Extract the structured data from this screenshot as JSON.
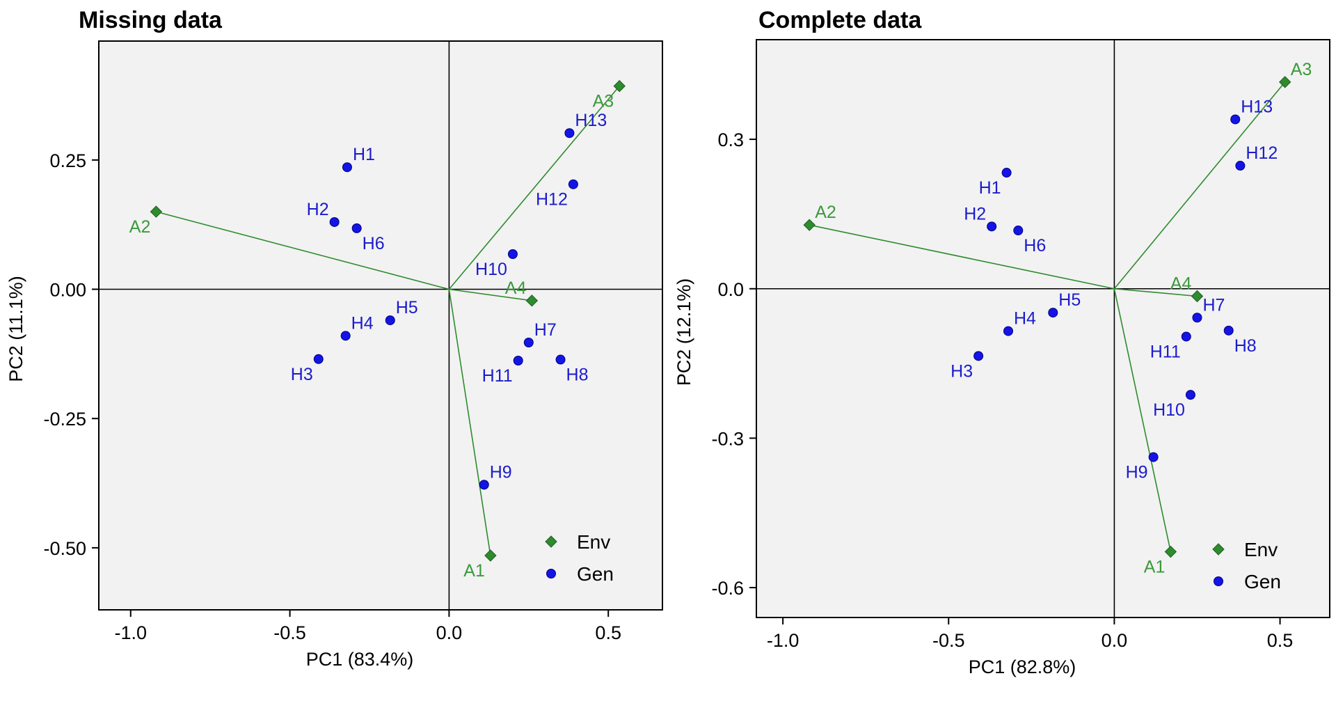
{
  "colors": {
    "env": "#2e8b2e",
    "env_text": "#3a9a3a",
    "gen": "#1414e6",
    "gen_text": "#1c1ccc",
    "panel_bg": "#f2f2f2"
  },
  "legend": {
    "env": "Env",
    "gen": "Gen"
  },
  "chart_data": [
    {
      "type": "scatter",
      "title": "Missing data",
      "xlabel": "PC1 (83.4%)",
      "ylabel": "PC2 (11.1%)",
      "xlim": [
        -1.1,
        0.67
      ],
      "ylim": [
        -0.62,
        0.48
      ],
      "xticks": [
        -1.0,
        -0.5,
        0.0,
        0.5
      ],
      "xtick_labels": [
        "-1.0",
        "-0.5",
        "0.0",
        "0.5"
      ],
      "yticks": [
        -0.5,
        -0.25,
        0.0,
        0.25
      ],
      "ytick_labels": [
        "-0.50",
        "-0.25",
        "0.00",
        "0.25"
      ],
      "legend_position": "bottom-right",
      "grid": false,
      "series": [
        {
          "name": "Env",
          "marker": "diamond",
          "points": [
            {
              "label": "A1",
              "x": 0.13,
              "y": -0.515,
              "label_pos": "bl"
            },
            {
              "label": "A2",
              "x": -0.92,
              "y": 0.15,
              "label_pos": "bl"
            },
            {
              "label": "A3",
              "x": 0.535,
              "y": 0.393,
              "label_pos": "bl"
            },
            {
              "label": "A4",
              "x": 0.26,
              "y": -0.022,
              "label_pos": "tl"
            }
          ]
        },
        {
          "name": "Gen",
          "marker": "circle",
          "points": [
            {
              "label": "H1",
              "x": -0.32,
              "y": 0.236,
              "label_pos": "tr"
            },
            {
              "label": "H2",
              "x": -0.36,
              "y": 0.13,
              "label_pos": "tl"
            },
            {
              "label": "H3",
              "x": -0.41,
              "y": -0.135,
              "label_pos": "bl"
            },
            {
              "label": "H4",
              "x": -0.325,
              "y": -0.09,
              "label_pos": "tr"
            },
            {
              "label": "H5",
              "x": -0.185,
              "y": -0.06,
              "label_pos": "tr"
            },
            {
              "label": "H6",
              "x": -0.29,
              "y": 0.118,
              "label_pos": "br"
            },
            {
              "label": "H7",
              "x": 0.25,
              "y": -0.103,
              "label_pos": "tr"
            },
            {
              "label": "H8",
              "x": 0.35,
              "y": -0.136,
              "label_pos": "br"
            },
            {
              "label": "H9",
              "x": 0.11,
              "y": -0.378,
              "label_pos": "tr"
            },
            {
              "label": "H10",
              "x": 0.2,
              "y": 0.068,
              "label_pos": "bl"
            },
            {
              "label": "H11",
              "x": 0.217,
              "y": -0.138,
              "label_pos": "bl"
            },
            {
              "label": "H12",
              "x": 0.39,
              "y": 0.203,
              "label_pos": "bl"
            },
            {
              "label": "H13",
              "x": 0.378,
              "y": 0.302,
              "label_pos": "tr"
            }
          ]
        }
      ],
      "vectors": [
        "A1",
        "A2",
        "A3",
        "A4"
      ]
    },
    {
      "type": "scatter",
      "title": "Complete data",
      "xlabel": "PC1 (82.8%)",
      "ylabel": "PC2 (12.1%)",
      "xlim": [
        -1.08,
        0.65
      ],
      "ylim": [
        -0.66,
        0.5
      ],
      "xticks": [
        -1.0,
        -0.5,
        0.0,
        0.5
      ],
      "xtick_labels": [
        "-1.0",
        "-0.5",
        "0.0",
        "0.5"
      ],
      "yticks": [
        -0.6,
        -0.3,
        0.0,
        0.3
      ],
      "ytick_labels": [
        "-0.6",
        "-0.3",
        "0.0",
        "0.3"
      ],
      "legend_position": "bottom-right",
      "grid": false,
      "series": [
        {
          "name": "Env",
          "marker": "diamond",
          "points": [
            {
              "label": "A1",
              "x": 0.17,
              "y": -0.528,
              "label_pos": "bl"
            },
            {
              "label": "A2",
              "x": -0.92,
              "y": 0.128,
              "label_pos": "tr"
            },
            {
              "label": "A3",
              "x": 0.515,
              "y": 0.415,
              "label_pos": "tr"
            },
            {
              "label": "A4",
              "x": 0.25,
              "y": -0.015,
              "label_pos": "tl"
            }
          ]
        },
        {
          "name": "Gen",
          "marker": "circle",
          "points": [
            {
              "label": "H1",
              "x": -0.325,
              "y": 0.233,
              "label_pos": "bl"
            },
            {
              "label": "H2",
              "x": -0.37,
              "y": 0.125,
              "label_pos": "tl"
            },
            {
              "label": "H3",
              "x": -0.41,
              "y": -0.135,
              "label_pos": "bl"
            },
            {
              "label": "H4",
              "x": -0.32,
              "y": -0.085,
              "label_pos": "tr"
            },
            {
              "label": "H5",
              "x": -0.185,
              "y": -0.048,
              "label_pos": "tr"
            },
            {
              "label": "H6",
              "x": -0.29,
              "y": 0.117,
              "label_pos": "br"
            },
            {
              "label": "H7",
              "x": 0.25,
              "y": -0.058,
              "label_pos": "tr"
            },
            {
              "label": "H8",
              "x": 0.345,
              "y": -0.084,
              "label_pos": "br"
            },
            {
              "label": "H9",
              "x": 0.118,
              "y": -0.338,
              "label_pos": "bl"
            },
            {
              "label": "H10",
              "x": 0.23,
              "y": -0.213,
              "label_pos": "bl"
            },
            {
              "label": "H11",
              "x": 0.217,
              "y": -0.096,
              "label_pos": "bl"
            },
            {
              "label": "H12",
              "x": 0.38,
              "y": 0.247,
              "label_pos": "tr"
            },
            {
              "label": "H13",
              "x": 0.365,
              "y": 0.34,
              "label_pos": "tr"
            }
          ]
        }
      ],
      "vectors": [
        "A1",
        "A2",
        "A3",
        "A4"
      ]
    }
  ]
}
